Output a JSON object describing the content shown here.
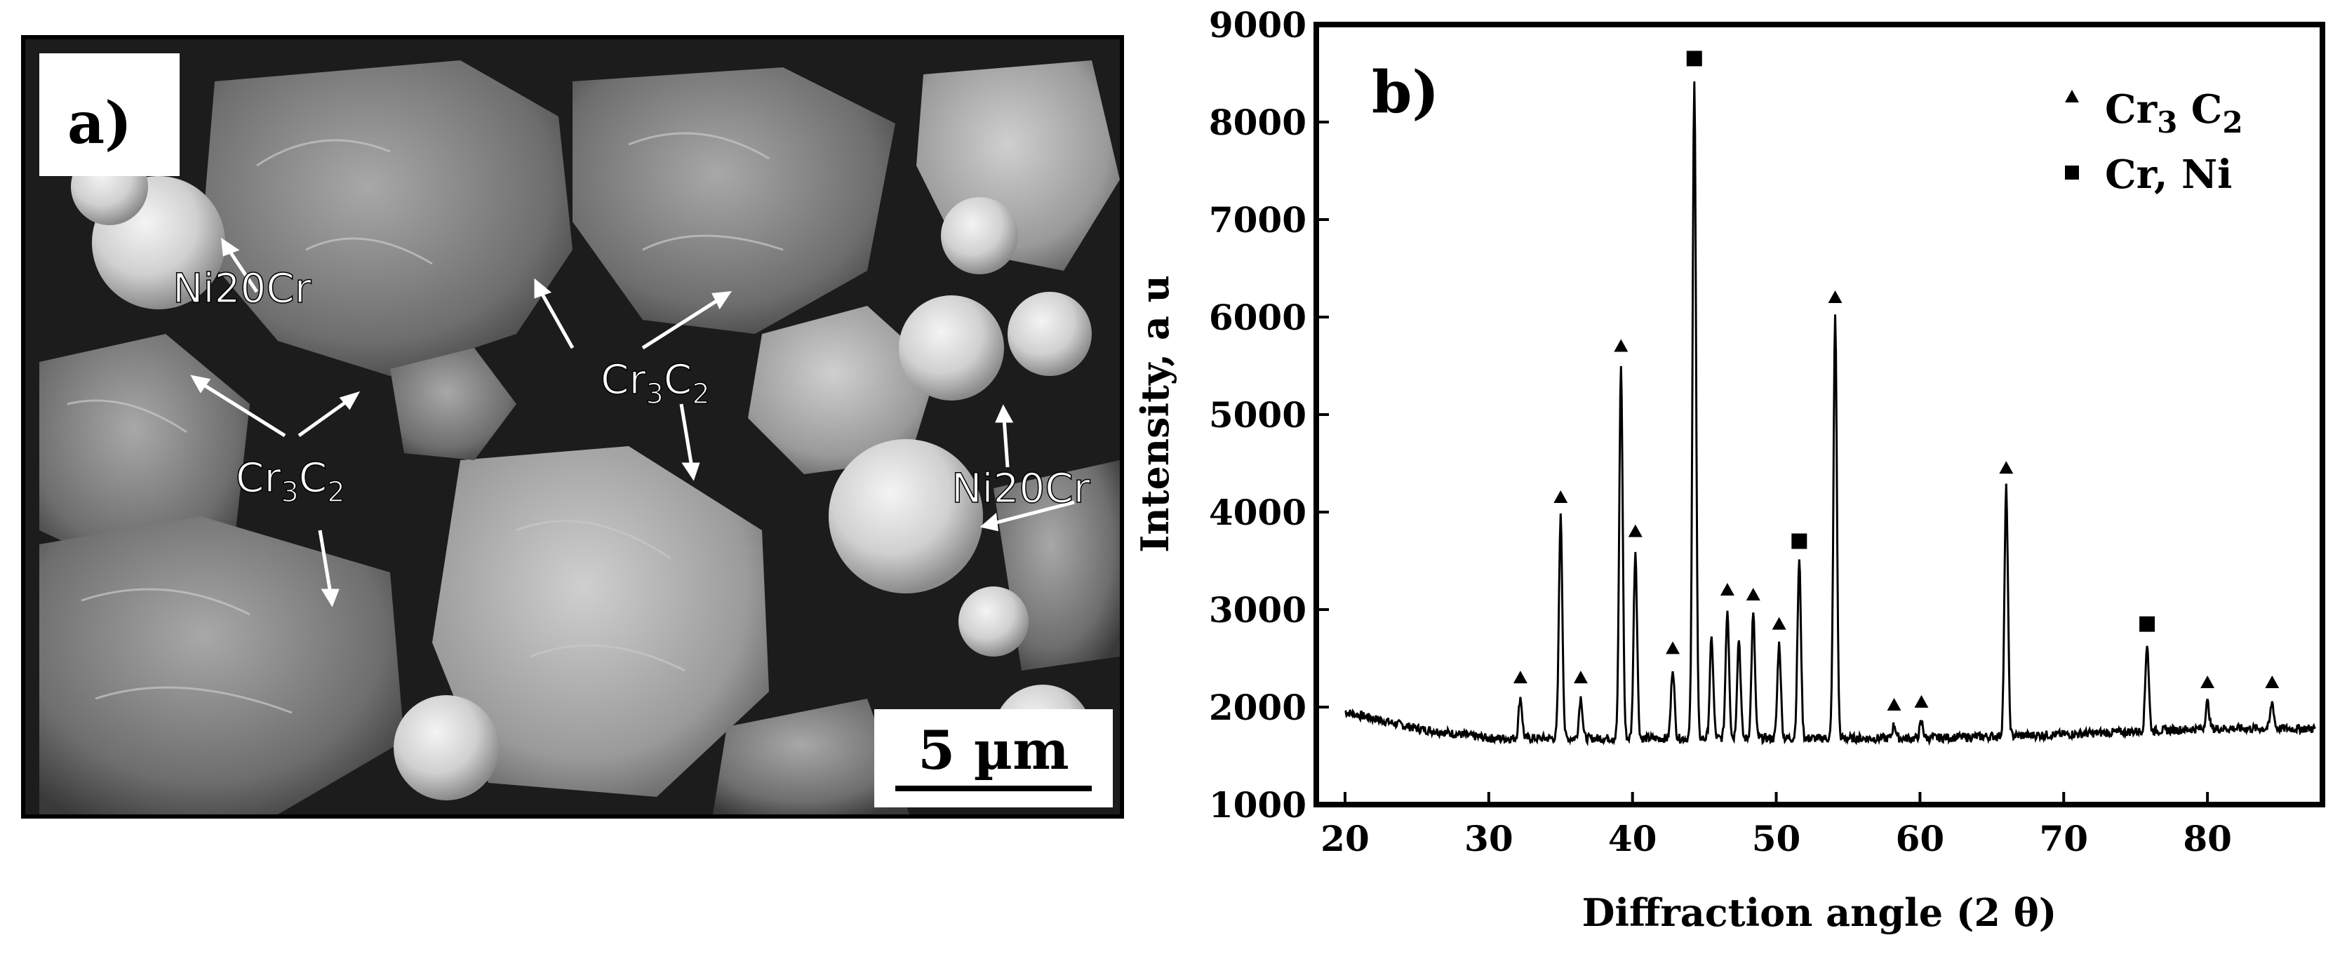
{
  "panel_a": {
    "label": "a)",
    "annotations": {
      "ni20cr_top": "Ni20Cr",
      "ni20cr_right": "Ni20Cr",
      "cr3c2_center": {
        "base": "Cr",
        "sub1": "3",
        "mid": "C",
        "sub2": "2"
      },
      "cr3c2_left": {
        "base": "Cr",
        "sub1": "3",
        "mid": "C",
        "sub2": "2"
      }
    },
    "scale_bar": "5 µm"
  },
  "chart_data": {
    "type": "line",
    "panel_label": "b)",
    "xlabel": "Diffraction angle (2 θ)",
    "ylabel": "Intensity, a u",
    "xlim": [
      18,
      88
    ],
    "ylim": [
      1000,
      9000
    ],
    "xticks": [
      20,
      30,
      40,
      50,
      60,
      70,
      80
    ],
    "yticks": [
      1000,
      2000,
      3000,
      4000,
      5000,
      6000,
      7000,
      8000,
      9000
    ],
    "background_baseline": [
      [
        20,
        1950
      ],
      [
        25,
        1780
      ],
      [
        30,
        1680
      ],
      [
        40,
        1680
      ],
      [
        60,
        1680
      ],
      [
        70,
        1720
      ],
      [
        80,
        1780
      ],
      [
        88,
        1780
      ]
    ],
    "peaks": [
      {
        "x": 32.2,
        "y": 2100,
        "marker": "triangle"
      },
      {
        "x": 35.0,
        "y": 3950,
        "marker": "triangle"
      },
      {
        "x": 36.4,
        "y": 2100,
        "marker": "triangle"
      },
      {
        "x": 39.2,
        "y": 5500,
        "marker": "triangle"
      },
      {
        "x": 40.2,
        "y": 3600,
        "marker": "triangle"
      },
      {
        "x": 42.8,
        "y": 2400,
        "marker": "triangle"
      },
      {
        "x": 44.3,
        "y": 8450,
        "marker": "square"
      },
      {
        "x": 45.5,
        "y": 2700,
        "marker": "none"
      },
      {
        "x": 46.6,
        "y": 3000,
        "marker": "triangle"
      },
      {
        "x": 47.4,
        "y": 2700,
        "marker": "none"
      },
      {
        "x": 48.4,
        "y": 2950,
        "marker": "triangle"
      },
      {
        "x": 50.2,
        "y": 2650,
        "marker": "triangle"
      },
      {
        "x": 51.6,
        "y": 3500,
        "marker": "square"
      },
      {
        "x": 54.1,
        "y": 6000,
        "marker": "triangle"
      },
      {
        "x": 58.2,
        "y": 1820,
        "marker": "triangle"
      },
      {
        "x": 60.1,
        "y": 1850,
        "marker": "triangle"
      },
      {
        "x": 66.0,
        "y": 4250,
        "marker": "triangle"
      },
      {
        "x": 75.8,
        "y": 2650,
        "marker": "square"
      },
      {
        "x": 80.0,
        "y": 2050,
        "marker": "triangle"
      },
      {
        "x": 84.5,
        "y": 2050,
        "marker": "triangle"
      }
    ],
    "legend": [
      {
        "marker": "triangle",
        "base": "Cr",
        "sub1": "3",
        "mid": " C",
        "sub2": "2"
      },
      {
        "marker": "square",
        "text": "Cr, Ni"
      }
    ],
    "legend_position": "top-right",
    "line_color": "#000000",
    "grid": false
  }
}
